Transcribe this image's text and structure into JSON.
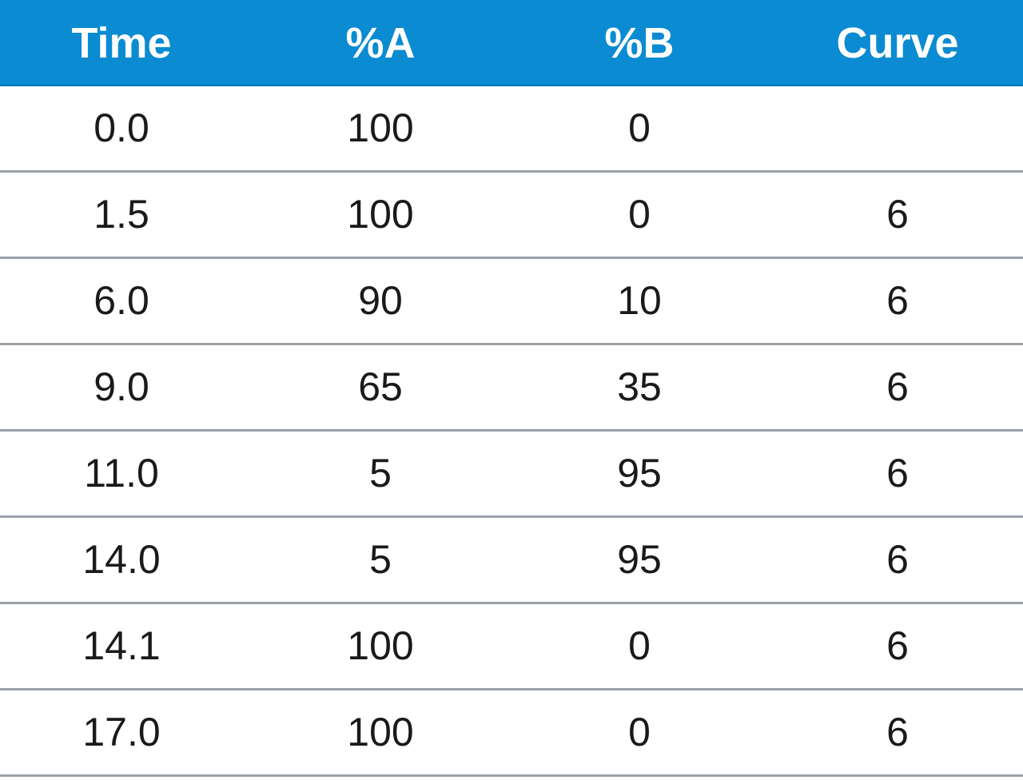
{
  "table": {
    "header": {
      "time": "Time",
      "a": "%A",
      "b": "%B",
      "curve": "Curve"
    },
    "rows": [
      {
        "time": "0.0",
        "a": "100",
        "b": "0",
        "curve": ""
      },
      {
        "time": "1.5",
        "a": "100",
        "b": "0",
        "curve": "6"
      },
      {
        "time": "6.0",
        "a": "90",
        "b": "10",
        "curve": "6"
      },
      {
        "time": "9.0",
        "a": "65",
        "b": "35",
        "curve": "6"
      },
      {
        "time": "11.0",
        "a": "5",
        "b": "95",
        "curve": "6"
      },
      {
        "time": "14.0",
        "a": "5",
        "b": "95",
        "curve": "6"
      },
      {
        "time": "14.1",
        "a": "100",
        "b": "0",
        "curve": "6"
      },
      {
        "time": "17.0",
        "a": "100",
        "b": "0",
        "curve": "6"
      }
    ]
  },
  "colors": {
    "header_background": "#0a8bd2",
    "header_text": "#ffffff",
    "row_divider": "#9aa0a6",
    "body_text": "#1a1a1a"
  }
}
